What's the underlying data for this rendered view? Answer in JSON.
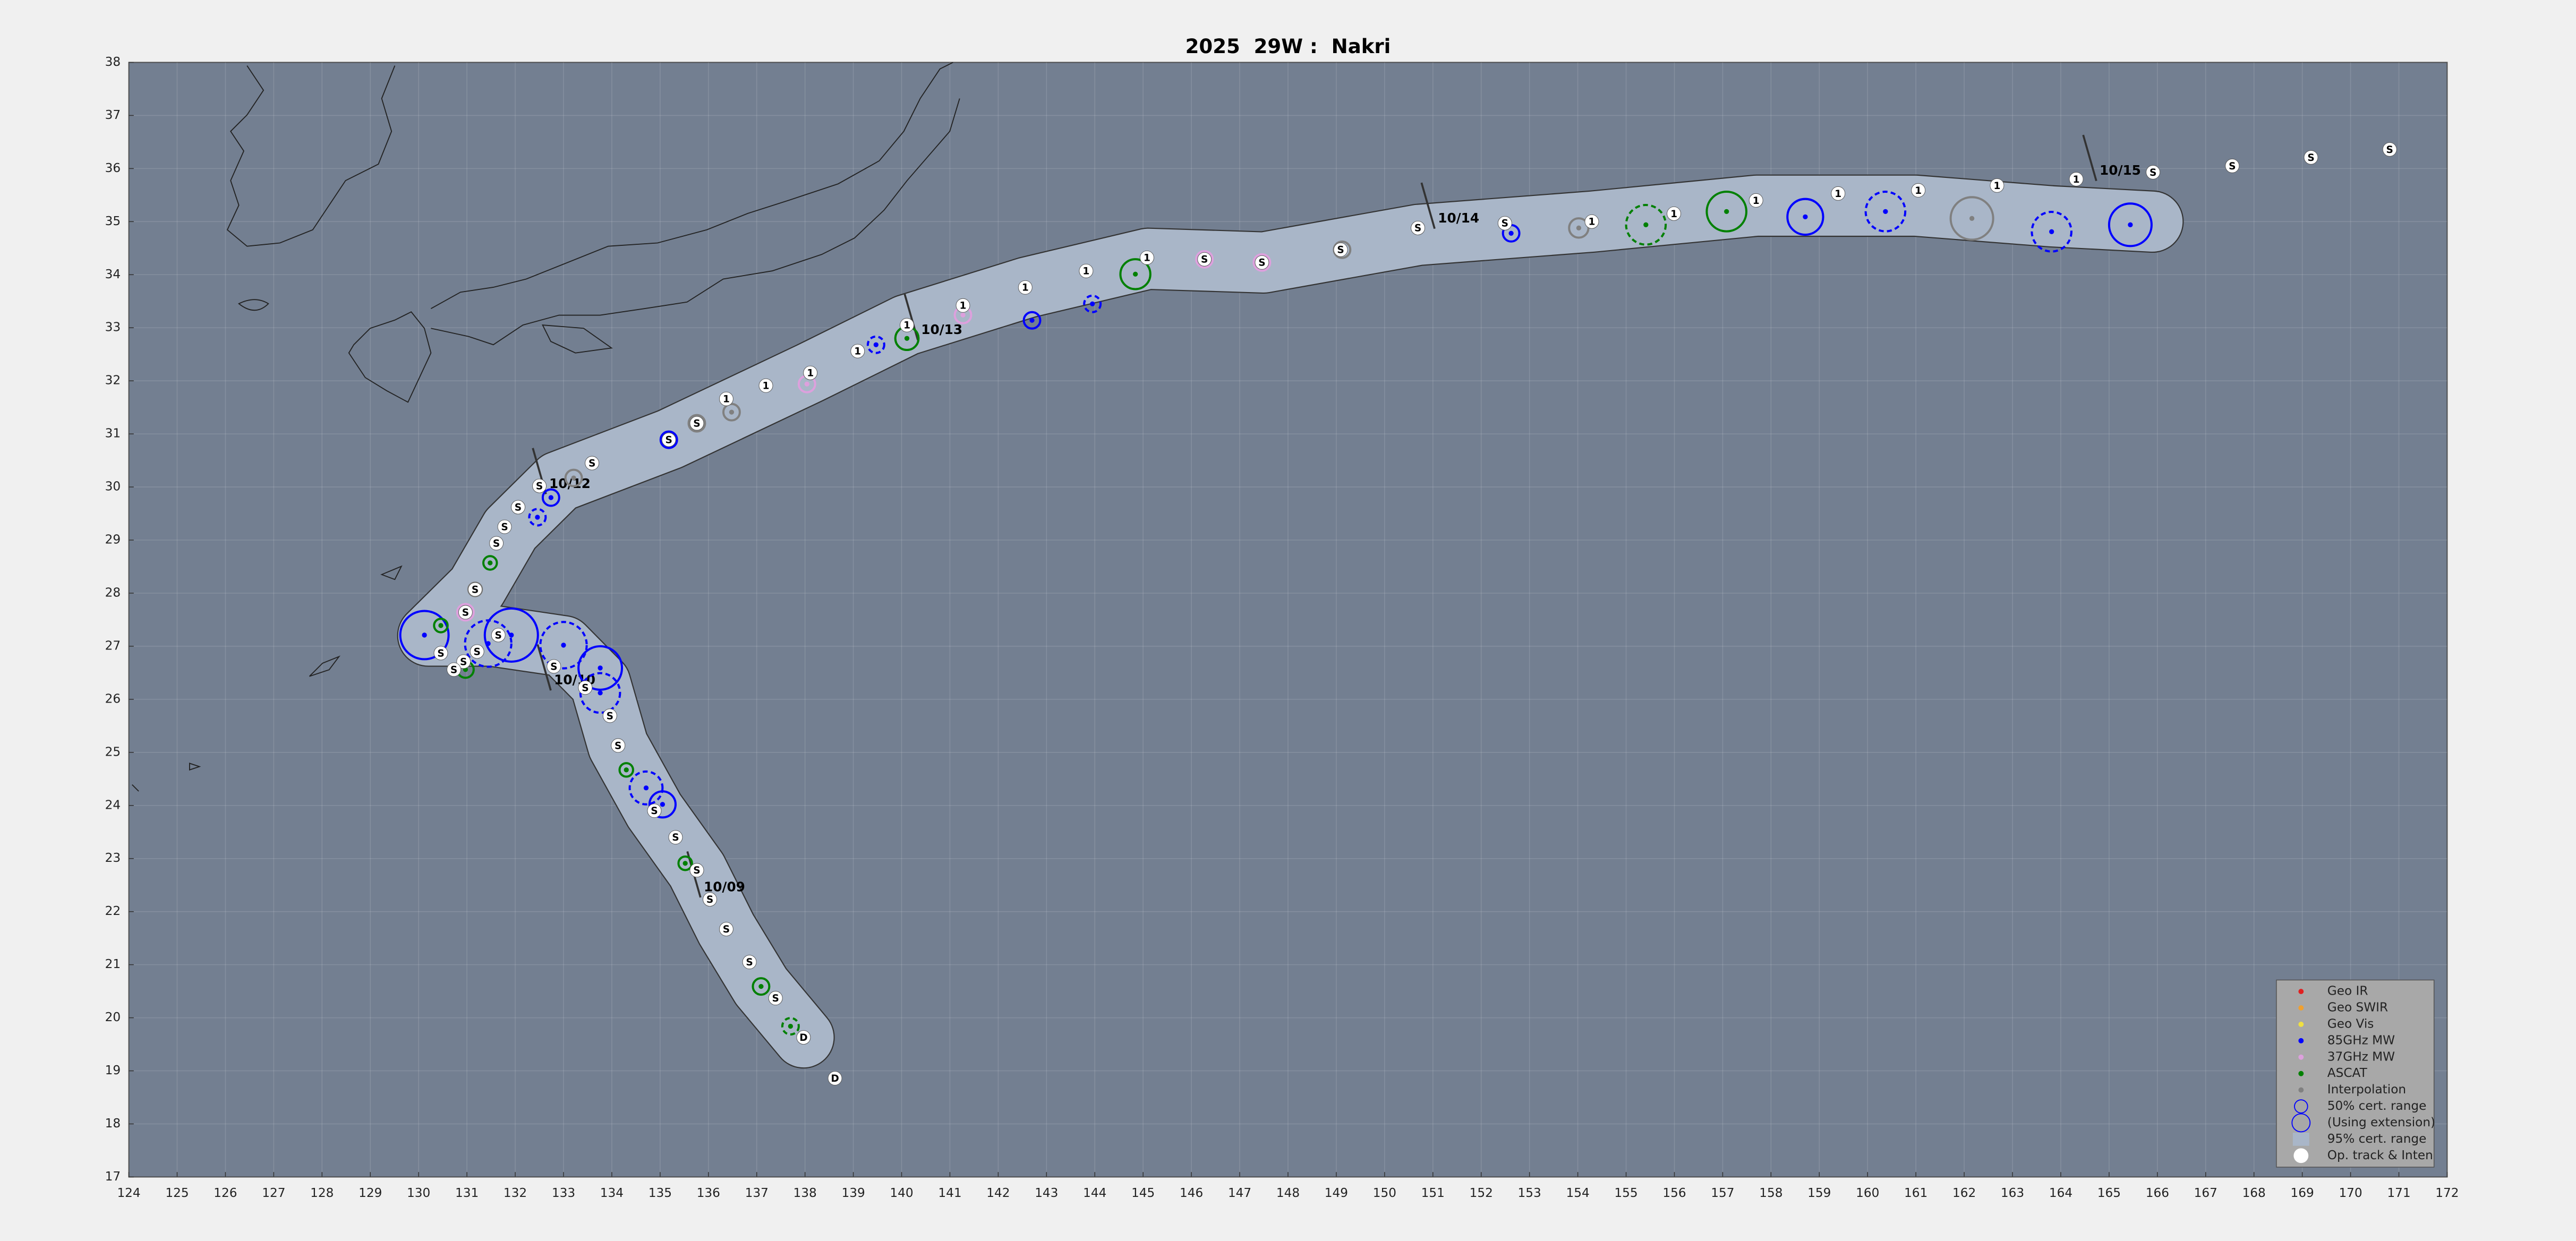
{
  "chart_data": {
    "type": "track",
    "title": "2025  29W :  Nakri",
    "xlim": [
      124,
      172
    ],
    "ylim": [
      17,
      38
    ],
    "xticks": [
      124,
      125,
      126,
      127,
      128,
      129,
      130,
      131,
      132,
      133,
      134,
      135,
      136,
      137,
      138,
      139,
      140,
      141,
      142,
      143,
      144,
      145,
      146,
      147,
      148,
      149,
      150,
      151,
      152,
      153,
      154,
      155,
      156,
      157,
      158,
      159,
      160,
      161,
      162,
      163,
      164,
      165,
      166,
      167,
      168,
      169,
      170,
      171,
      172
    ],
    "yticks": [
      17,
      18,
      19,
      20,
      21,
      22,
      23,
      24,
      25,
      26,
      27,
      28,
      29,
      30,
      31,
      32,
      33,
      34,
      35,
      36,
      37,
      38
    ],
    "grid": true,
    "legend": "lower right",
    "cert_range": {
      "name": "95% cert. range",
      "color": "#a9b6c8",
      "x": [
        137.97,
        137.09,
        136.37,
        135.76,
        134.88,
        134.13,
        133.76,
        133.0,
        131.5,
        130.2,
        131.2,
        131.9,
        132.9,
        135.2,
        138.1,
        140.1,
        142.6,
        145.1,
        147.5,
        150.7,
        154.3,
        157.7,
        161.0,
        163.8,
        165.9
      ],
      "y": [
        19.63,
        20.59,
        21.67,
        22.78,
        23.9,
        25.13,
        26.3,
        27.0,
        27.2,
        27.2,
        28.1,
        29.2,
        30.1,
        30.9,
        32.15,
        33.05,
        33.76,
        34.3,
        34.23,
        34.75,
        35.0,
        35.3,
        35.3,
        35.1,
        35.0
      ]
    },
    "ranges": [
      "50% cert. range",
      "(Using extension)"
    ],
    "track": {
      "name": "Op. track & Inten",
      "color": "#ffffff",
      "x": [
        138.62,
        137.97,
        137.39,
        136.85,
        136.37,
        136.03,
        135.76,
        135.32,
        134.88,
        134.13,
        133.96,
        133.45,
        132.8,
        131.65,
        131.21,
        130.93,
        130.73,
        130.46,
        130.97,
        131.17,
        131.61,
        131.78,
        132.06,
        132.5,
        133.59,
        135.18,
        135.76,
        136.37,
        137.19,
        138.11,
        139.09,
        140.11,
        141.27,
        142.56,
        143.82,
        145.08,
        146.27,
        147.46,
        149.09,
        150.69,
        152.49,
        154.29,
        155.99,
        157.69,
        159.39,
        161.05,
        162.68,
        164.32,
        165.91,
        167.55,
        169.18,
        170.81
      ],
      "y": [
        18.86,
        19.63,
        20.37,
        21.05,
        21.67,
        22.23,
        22.78,
        23.4,
        23.9,
        25.13,
        25.69,
        26.22,
        26.62,
        27.21,
        26.9,
        26.71,
        26.56,
        26.87,
        27.64,
        28.07,
        28.94,
        29.25,
        29.62,
        30.02,
        30.45,
        30.89,
        31.2,
        31.66,
        31.91,
        32.15,
        32.56,
        33.05,
        33.42,
        33.76,
        34.07,
        34.32,
        34.29,
        34.23,
        34.47,
        34.88,
        34.97,
        35.0,
        35.15,
        35.4,
        35.53,
        35.59,
        35.68,
        35.8,
        35.93,
        36.05,
        36.21,
        36.36
      ],
      "labels": [
        "D",
        "D",
        "S",
        "S",
        "S",
        "S",
        "S",
        "S",
        "S",
        "S",
        "S",
        "S",
        "S",
        "S",
        "S",
        "S",
        "S",
        "S",
        "S",
        "S",
        "S",
        "S",
        "S",
        "S",
        "S",
        "S",
        "S",
        "1",
        "1",
        "1",
        "1",
        "1",
        "1",
        "1",
        "1",
        "1",
        "S",
        "S",
        "S",
        "S",
        "S",
        "1",
        "1",
        "1",
        "1",
        "1",
        "1",
        "1",
        "S",
        "S",
        "S",
        "S"
      ]
    },
    "series": [
      {
        "name": "Geo IR",
        "color": "#e02020",
        "x": [],
        "y": [],
        "r": [],
        "extension": []
      },
      {
        "name": "Geo SWIR",
        "color": "#f0a030",
        "x": [],
        "y": [],
        "r": [],
        "extension": []
      },
      {
        "name": "Geo Vis",
        "color": "#f0e040",
        "x": [],
        "y": [],
        "r": [],
        "extension": []
      },
      {
        "name": "85GHz MW",
        "color": "#0000ff",
        "x": [
          130.12,
          131.92,
          133.76,
          135.05,
          132.74,
          135.18,
          142.7,
          152.62,
          158.71,
          165.44,
          131.44,
          133.0,
          133.76,
          134.71,
          132.46,
          139.47,
          143.95,
          160.37,
          163.81
        ],
        "y": [
          27.21,
          27.21,
          26.59,
          24.02,
          29.8,
          30.89,
          33.14,
          34.78,
          35.09,
          34.94,
          27.05,
          27.02,
          26.12,
          24.33,
          29.43,
          32.68,
          33.45,
          35.19,
          34.81
        ],
        "r": [
          0.5,
          0.55,
          0.45,
          0.27,
          0.17,
          0.17,
          0.17,
          0.17,
          0.37,
          0.44,
          0.48,
          0.48,
          0.41,
          0.34,
          0.17,
          0.17,
          0.17,
          0.41,
          0.41
        ],
        "extension": [
          false,
          false,
          false,
          false,
          false,
          false,
          false,
          false,
          false,
          false,
          true,
          true,
          true,
          true,
          true,
          true,
          true,
          true,
          true
        ]
      },
      {
        "name": "37GHz MW",
        "color": "#dda0dd",
        "x": [
          130.97,
          138.04,
          141.27,
          146.27,
          147.46
        ],
        "y": [
          27.64,
          31.94,
          33.24,
          34.29,
          34.23
        ],
        "r": [
          0.17,
          0.17,
          0.17,
          0.17,
          0.17
        ],
        "extension": [
          false,
          false,
          false,
          false,
          false
        ]
      },
      {
        "name": "ASCAT",
        "color": "#008000",
        "x": [
          137.09,
          137.7,
          135.52,
          134.3,
          131.48,
          130.97,
          130.46,
          140.11,
          144.84,
          155.41,
          157.08
        ],
        "y": [
          20.59,
          19.84,
          22.91,
          24.67,
          28.57,
          26.56,
          27.39,
          32.8,
          34.01,
          34.94,
          35.19
        ],
        "r": [
          0.17,
          0.17,
          0.14,
          0.14,
          0.14,
          0.17,
          0.14,
          0.24,
          0.31,
          0.41,
          0.41
        ],
        "extension": [
          false,
          true,
          false,
          false,
          false,
          false,
          false,
          false,
          false,
          true,
          false
        ]
      },
      {
        "name": "Interpolation",
        "color": "#808080",
        "x": [
          133.21,
          136.48,
          135.76,
          131.17,
          149.12,
          154.02,
          162.16
        ],
        "y": [
          30.17,
          31.41,
          31.2,
          28.07,
          34.47,
          34.88,
          35.06
        ],
        "r": [
          0.17,
          0.17,
          0.17,
          0.14,
          0.17,
          0.2,
          0.44
        ],
        "extension": [
          false,
          false,
          false,
          false,
          false,
          false,
          false
        ]
      }
    ],
    "dates": [
      {
        "label": "10/09",
        "x": 135.7,
        "y": 22.7
      },
      {
        "label": "10/10",
        "x": 132.6,
        "y": 26.6
      },
      {
        "label": "10/12",
        "x": 132.5,
        "y": 30.3
      },
      {
        "label": "10/13",
        "x": 140.2,
        "y": 33.2
      },
      {
        "label": "10/14",
        "x": 150.9,
        "y": 35.3
      },
      {
        "label": "10/15",
        "x": 164.6,
        "y": 36.2
      }
    ]
  }
}
